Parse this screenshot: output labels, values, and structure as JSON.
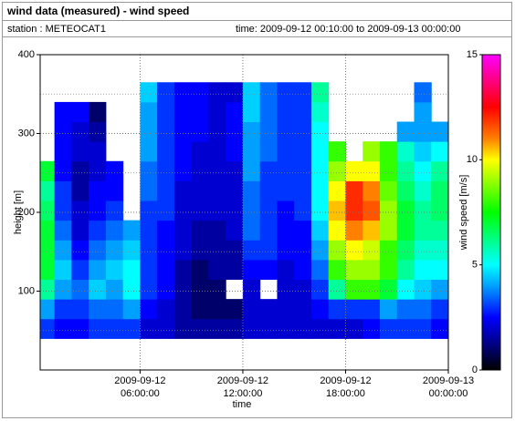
{
  "chart_data": {
    "type": "heatmap",
    "title": "wind data (measured) - wind speed",
    "station": "station : METEOCAT1",
    "time_range": "time: 2009-09-12 00:10:00 to 2009-09-13 00:00:00",
    "x_label": "time",
    "y_label": "height [m]",
    "colorbar_label": "wind speed [m/s]",
    "xlim": [
      "2009-09-12 00:10:00",
      "2009-09-13 00:00:00"
    ],
    "xticks": [
      "2009-09-12 06:00:00",
      "2009-09-12 12:00:00",
      "2009-09-12 18:00:00",
      "2009-09-13 00:00:00"
    ],
    "ylim": [
      0,
      400
    ],
    "yticks": [
      100,
      200,
      300,
      400
    ],
    "yminor": [
      50,
      150,
      250,
      350
    ],
    "clim": [
      0,
      15
    ],
    "cticks": [
      0,
      5,
      10,
      15
    ],
    "colormap": [
      {
        "value": 0,
        "color": "#000000"
      },
      {
        "value": 1.5,
        "color": "#0000a0"
      },
      {
        "value": 2.5,
        "color": "#0000ff"
      },
      {
        "value": 4,
        "color": "#00a0ff"
      },
      {
        "value": 5,
        "color": "#00ffff"
      },
      {
        "value": 7.5,
        "color": "#00ff00"
      },
      {
        "value": 10,
        "color": "#ffff00"
      },
      {
        "value": 11,
        "color": "#ff8000"
      },
      {
        "value": 12.5,
        "color": "#ff0000"
      },
      {
        "value": 15,
        "color": "#ff00ff"
      }
    ],
    "grid": true,
    "x_bins": [
      "2009-09-12 00:10:00",
      "2009-09-12 01:00:00",
      "2009-09-12 02:00:00",
      "2009-09-12 03:00:00",
      "2009-09-12 04:00:00",
      "2009-09-12 05:00:00",
      "2009-09-12 06:00:00",
      "2009-09-12 07:00:00",
      "2009-09-12 08:00:00",
      "2009-09-12 09:00:00",
      "2009-09-12 10:00:00",
      "2009-09-12 11:00:00",
      "2009-09-12 12:00:00",
      "2009-09-12 13:00:00",
      "2009-09-12 14:00:00",
      "2009-09-12 15:00:00",
      "2009-09-12 16:00:00",
      "2009-09-12 17:00:00",
      "2009-09-12 18:00:00",
      "2009-09-12 19:00:00",
      "2009-09-12 20:00:00",
      "2009-09-12 21:00:00",
      "2009-09-12 22:00:00",
      "2009-09-12 23:00:00",
      "2009-09-13 00:00:00"
    ],
    "y_bins": [
      40,
      65,
      90,
      115,
      140,
      165,
      190,
      215,
      240,
      265,
      290,
      315,
      340,
      365
    ],
    "values": [
      [
        3,
        4,
        6,
        7,
        7,
        7,
        6.5,
        6,
        7,
        null,
        null,
        null,
        null
      ],
      [
        2.5,
        3,
        4,
        4.5,
        4,
        3.5,
        3,
        3,
        2.5,
        2.5,
        2.5,
        2.5,
        null
      ],
      [
        2.5,
        3,
        3.5,
        3,
        2.5,
        2,
        2,
        1.5,
        1.5,
        2,
        2,
        2.5,
        null
      ],
      [
        3,
        3.5,
        4.5,
        4,
        3.5,
        3,
        2.5,
        2.5,
        2,
        2,
        1.5,
        1,
        null
      ],
      [
        3,
        3.5,
        4,
        4.5,
        4,
        3.5,
        3,
        2.5,
        2.5,
        null,
        null,
        null,
        null
      ],
      [
        3,
        4,
        5,
        5,
        4.5,
        4,
        null,
        null,
        null,
        null,
        null,
        null,
        null
      ],
      [
        2,
        2.5,
        3,
        3,
        3,
        3,
        3,
        3.5,
        3.5,
        4,
        4,
        4,
        4.5
      ],
      [
        2,
        2,
        2.5,
        2.5,
        2.5,
        2.5,
        3,
        3,
        3,
        3,
        3,
        3,
        3
      ],
      [
        1.5,
        1.5,
        1.5,
        1.5,
        2,
        2,
        2,
        2,
        2.5,
        2.5,
        2.5,
        2.5,
        2.5
      ],
      [
        1.5,
        1,
        1,
        1,
        1.5,
        1.5,
        2,
        2,
        2,
        2,
        2.5,
        2.5,
        2.5
      ],
      [
        1.5,
        1,
        1,
        1.5,
        1.5,
        1.5,
        2,
        2,
        2,
        2,
        2,
        2,
        2
      ],
      [
        1.5,
        1,
        null,
        1.5,
        1.5,
        2,
        2,
        2,
        2,
        2.5,
        2.5,
        2.5,
        2
      ],
      [
        2,
        2,
        2,
        2.5,
        3,
        3.5,
        3.5,
        3.5,
        4,
        4,
        4,
        4.5,
        4.5
      ],
      [
        2,
        2,
        null,
        2.5,
        3,
        3,
        3,
        3,
        3,
        3.5,
        3.5,
        3.5,
        3.5
      ],
      [
        2,
        2,
        2,
        2,
        2.5,
        2.5,
        2.5,
        3,
        3,
        3,
        3,
        3,
        3
      ],
      [
        2,
        2,
        2,
        2.5,
        2.5,
        2.5,
        3,
        3,
        3,
        3,
        3,
        3,
        3
      ],
      [
        2,
        2.5,
        3,
        3.5,
        4,
        4.5,
        5,
        5,
        5,
        5,
        5,
        5.5,
        6
      ],
      [
        2,
        3,
        6,
        8,
        9,
        10,
        10.5,
        10,
        9,
        8,
        null,
        null,
        null
      ],
      [
        2,
        3,
        8,
        9,
        10,
        11,
        12,
        12,
        10,
        null,
        null,
        null,
        null
      ],
      [
        2.5,
        3,
        8,
        9,
        9.5,
        10.5,
        11.5,
        11,
        10,
        9,
        null,
        null,
        null
      ],
      [
        3,
        4,
        7,
        8,
        8,
        9,
        9,
        8.5,
        8,
        8,
        null,
        null,
        null
      ],
      [
        3,
        3.5,
        5,
        6,
        6.5,
        7,
        7,
        6.5,
        6,
        5.5,
        4,
        null,
        null
      ],
      [
        3,
        3.5,
        4.5,
        5,
        5.5,
        6,
        6,
        5.5,
        5,
        4.5,
        4,
        4,
        3.5
      ],
      [
        2.5,
        3,
        4,
        5,
        5.5,
        6,
        6.5,
        6.5,
        6,
        5,
        4,
        null,
        null
      ]
    ]
  }
}
